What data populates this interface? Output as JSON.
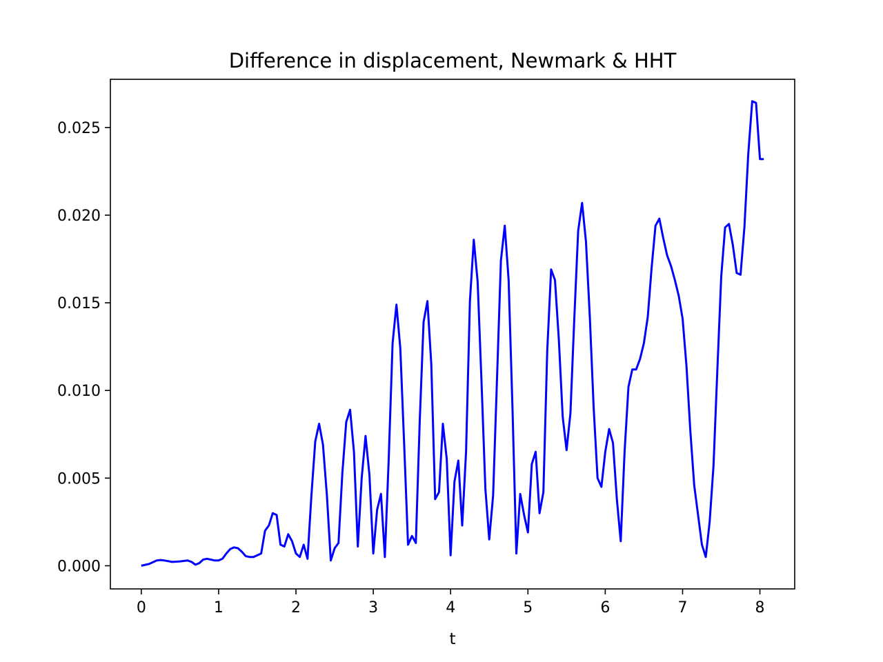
{
  "chart_data": {
    "type": "line",
    "title": "Difference in displacement, Newmark & HHT",
    "xlabel": "t",
    "ylabel": "",
    "xlim": [
      -0.4,
      8.45
    ],
    "ylim": [
      -0.00132,
      0.02775
    ],
    "xticks": [
      "0",
      "1",
      "2",
      "3",
      "4",
      "5",
      "6",
      "7",
      "8"
    ],
    "yticks": [
      "0.000",
      "0.005",
      "0.010",
      "0.015",
      "0.020",
      "0.025"
    ],
    "grid": false,
    "legend": "none",
    "series": [
      {
        "color": "#0000ff",
        "x": [
          0.0,
          0.1,
          0.2,
          0.25,
          0.3,
          0.4,
          0.5,
          0.6,
          0.65,
          0.7,
          0.75,
          0.8,
          0.85,
          0.9,
          0.95,
          1.0,
          1.05,
          1.1,
          1.15,
          1.2,
          1.25,
          1.3,
          1.35,
          1.4,
          1.45,
          1.5,
          1.55,
          1.6,
          1.65,
          1.7,
          1.75,
          1.8,
          1.85,
          1.9,
          1.95,
          2.0,
          2.05,
          2.1,
          2.15,
          2.2,
          2.25,
          2.3,
          2.35,
          2.4,
          2.45,
          2.5,
          2.55,
          2.6,
          2.65,
          2.7,
          2.75,
          2.8,
          2.85,
          2.9,
          2.95,
          3.0,
          3.05,
          3.1,
          3.15,
          3.2,
          3.25,
          3.3,
          3.35,
          3.4,
          3.45,
          3.5,
          3.55,
          3.6,
          3.65,
          3.7,
          3.75,
          3.8,
          3.85,
          3.9,
          3.95,
          4.0,
          4.05,
          4.1,
          4.15,
          4.2,
          4.25,
          4.3,
          4.35,
          4.4,
          4.45,
          4.5,
          4.55,
          4.6,
          4.65,
          4.7,
          4.75,
          4.8,
          4.85,
          4.9,
          4.95,
          5.0,
          5.05,
          5.1,
          5.15,
          5.2,
          5.25,
          5.3,
          5.35,
          5.4,
          5.45,
          5.5,
          5.55,
          5.6,
          5.65,
          5.7,
          5.75,
          5.8,
          5.85,
          5.9,
          5.95,
          6.0,
          6.05,
          6.1,
          6.15,
          6.2,
          6.25,
          6.3,
          6.35,
          6.4,
          6.45,
          6.5,
          6.55,
          6.6,
          6.65,
          6.7,
          6.75,
          6.8,
          6.85,
          6.9,
          6.95,
          7.0,
          7.05,
          7.1,
          7.15,
          7.2,
          7.25,
          7.3,
          7.35,
          7.4,
          7.45,
          7.5,
          7.55,
          7.6,
          7.65,
          7.7,
          7.75,
          7.8,
          7.85,
          7.9,
          7.95,
          8.0,
          8.05
        ],
        "y": [
          0.0,
          0.0001,
          0.0003,
          0.00033,
          0.0003,
          0.00022,
          0.00025,
          0.0003,
          0.00022,
          6e-05,
          0.00015,
          0.00035,
          0.0004,
          0.00035,
          0.0003,
          0.0003,
          0.0004,
          0.0007,
          0.00095,
          0.00105,
          0.001,
          0.0008,
          0.00055,
          0.0005,
          0.0005,
          0.0006,
          0.0007,
          0.002,
          0.0023,
          0.003,
          0.0029,
          0.0012,
          0.0011,
          0.0018,
          0.0014,
          0.0007,
          0.0005,
          0.0012,
          0.0004,
          0.004,
          0.0071,
          0.0081,
          0.0069,
          0.004,
          0.0003,
          0.001,
          0.0013,
          0.0053,
          0.0082,
          0.0089,
          0.0065,
          0.0011,
          0.005,
          0.0074,
          0.0052,
          0.0007,
          0.0032,
          0.0041,
          0.0005,
          0.0061,
          0.0127,
          0.0149,
          0.0124,
          0.0069,
          0.0012,
          0.0017,
          0.0013,
          0.0082,
          0.0139,
          0.0151,
          0.0115,
          0.0038,
          0.0042,
          0.0081,
          0.0061,
          0.0006,
          0.0048,
          0.006,
          0.0023,
          0.0065,
          0.0151,
          0.0186,
          0.0162,
          0.0105,
          0.0044,
          0.0015,
          0.004,
          0.0107,
          0.0174,
          0.0194,
          0.0163,
          0.009,
          0.0007,
          0.0041,
          0.0029,
          0.0019,
          0.0058,
          0.0065,
          0.003,
          0.0042,
          0.0123,
          0.0169,
          0.0163,
          0.0129,
          0.0085,
          0.0066,
          0.0087,
          0.0141,
          0.0191,
          0.0207,
          0.0185,
          0.0142,
          0.009,
          0.005,
          0.0045,
          0.0065,
          0.0078,
          0.007,
          0.0038,
          0.0014,
          0.0065,
          0.0102,
          0.0112,
          0.0112,
          0.0118,
          0.0127,
          0.0142,
          0.017,
          0.0194,
          0.0198,
          0.0187,
          0.0177,
          0.0171,
          0.0163,
          0.0154,
          0.0141,
          0.0114,
          0.0077,
          0.0046,
          0.0029,
          0.0012,
          0.0005,
          0.0025,
          0.0057,
          0.0112,
          0.0165,
          0.0193,
          0.0195,
          0.0183,
          0.0167,
          0.0166,
          0.0193,
          0.0235,
          0.0265,
          0.0264,
          0.0232,
          0.0232
        ]
      }
    ]
  }
}
